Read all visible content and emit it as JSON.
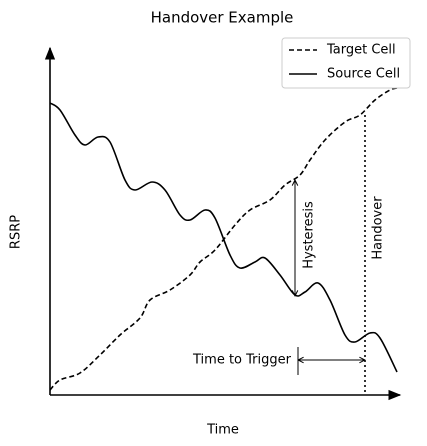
{
  "chart_data": {
    "type": "line",
    "title": "Handover Example",
    "x_label": "Time",
    "y_label": "RSRP",
    "xlim": [
      0,
      350
    ],
    "ylim": [
      0,
      345
    ],
    "legend": "upper right",
    "series": [
      {
        "name": "Target Cell",
        "color": "#000000",
        "dash": true,
        "x": [
          0,
          10,
          30,
          50,
          70,
          90,
          100,
          120,
          140,
          150,
          165,
          185,
          200,
          220,
          235,
          250,
          260,
          275,
          295,
          310,
          325,
          340,
          347
        ],
        "values": [
          5,
          15,
          22,
          40,
          60,
          77,
          95,
          105,
          120,
          133,
          145,
          170,
          185,
          195,
          210,
          220,
          235,
          255,
          273,
          280,
          295,
          305,
          307
        ]
      },
      {
        "name": "Source Cell",
        "color": "#000000",
        "dash": false,
        "x": [
          0,
          10,
          25,
          35,
          48,
          60,
          75,
          85,
          102,
          115,
          130,
          140,
          155,
          165,
          180,
          190,
          205,
          215,
          230,
          245,
          255,
          268,
          280,
          295,
          305,
          320,
          330,
          347
        ],
        "values": [
          292,
          285,
          260,
          250,
          258,
          253,
          215,
          205,
          213,
          205,
          180,
          175,
          185,
          177,
          140,
          127,
          133,
          137,
          120,
          100,
          103,
          112,
          95,
          60,
          53,
          62,
          57,
          23
        ]
      }
    ],
    "annotations": [
      "Hysteresis",
      "Handover",
      "Time to Trigger"
    ]
  }
}
